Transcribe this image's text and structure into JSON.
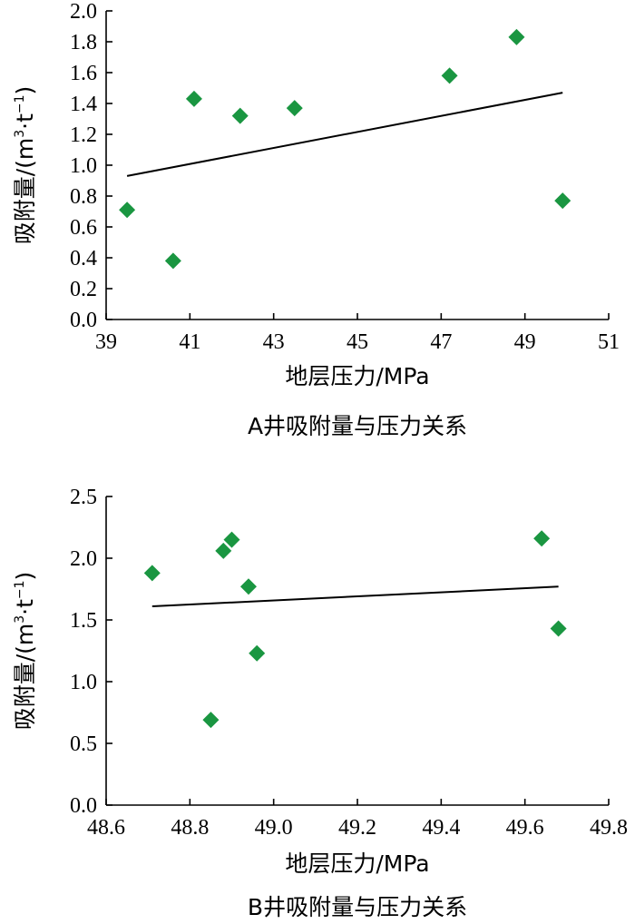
{
  "chart_data": [
    {
      "type": "scatter",
      "caption": "A井吸附量与压力关系",
      "xlabel": "地层压力/MPa",
      "ylabel_main": "吸附量/(m",
      "ylabel_sup1": "3",
      "ylabel_mid": "·t",
      "ylabel_sup2": "−1",
      "ylabel_end": ")",
      "xlim": [
        39,
        51
      ],
      "ylim": [
        0,
        2.0
      ],
      "xticks": [
        "39",
        "41",
        "43",
        "45",
        "47",
        "49",
        "51"
      ],
      "yticks": [
        "0.0",
        "0.2",
        "0.4",
        "0.6",
        "0.8",
        "1.0",
        "1.2",
        "1.4",
        "1.6",
        "1.8",
        "2.0"
      ],
      "points": [
        {
          "x": 39.5,
          "y": 0.71
        },
        {
          "x": 40.6,
          "y": 0.38
        },
        {
          "x": 41.1,
          "y": 1.43
        },
        {
          "x": 42.2,
          "y": 1.32
        },
        {
          "x": 43.5,
          "y": 1.37
        },
        {
          "x": 47.2,
          "y": 1.58
        },
        {
          "x": 48.8,
          "y": 1.83
        },
        {
          "x": 49.9,
          "y": 0.77
        }
      ],
      "trendline": {
        "x": [
          39.5,
          49.9
        ],
        "y": [
          0.93,
          1.47
        ]
      },
      "marker_color": "#1a9641"
    },
    {
      "type": "scatter",
      "caption": "B井吸附量与压力关系",
      "xlabel": "地层压力/MPa",
      "ylabel_main": "吸附量/(m",
      "ylabel_sup1": "3",
      "ylabel_mid": "·t",
      "ylabel_sup2": "−1",
      "ylabel_end": ")",
      "xlim": [
        48.6,
        49.8
      ],
      "ylim": [
        0,
        2.5
      ],
      "xticks": [
        "48.6",
        "48.8",
        "49.0",
        "49.2",
        "49.4",
        "49.6",
        "49.8"
      ],
      "yticks": [
        "0.0",
        "0.5",
        "1.0",
        "1.5",
        "2.0",
        "2.5"
      ],
      "points": [
        {
          "x": 48.71,
          "y": 1.88
        },
        {
          "x": 48.85,
          "y": 0.69
        },
        {
          "x": 48.88,
          "y": 2.06
        },
        {
          "x": 48.9,
          "y": 2.15
        },
        {
          "x": 48.94,
          "y": 1.77
        },
        {
          "x": 48.96,
          "y": 1.23
        },
        {
          "x": 49.64,
          "y": 2.16
        },
        {
          "x": 49.68,
          "y": 1.43
        }
      ],
      "trendline": {
        "x": [
          48.71,
          49.68
        ],
        "y": [
          1.61,
          1.77
        ]
      },
      "marker_color": "#1a9641"
    }
  ]
}
